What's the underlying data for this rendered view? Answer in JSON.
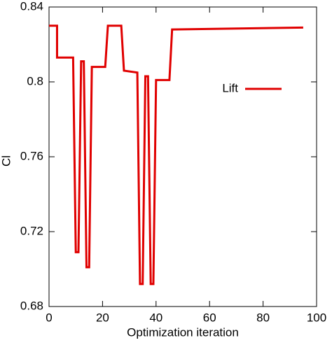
{
  "chart_data": {
    "type": "line",
    "x_label": "Optimization iteration",
    "y_label": "Cl",
    "x": [
      0,
      3,
      3,
      9,
      10,
      11,
      12,
      13,
      14,
      15,
      16,
      21,
      22,
      27,
      28,
      33,
      34,
      35,
      36,
      37,
      38,
      39,
      40,
      45,
      46,
      95
    ],
    "series": [
      {
        "name": "Lift",
        "color": "#e00000",
        "values": [
          0.83,
          0.83,
          0.813,
          0.813,
          0.709,
          0.709,
          0.811,
          0.811,
          0.701,
          0.701,
          0.808,
          0.808,
          0.83,
          0.83,
          0.806,
          0.805,
          0.692,
          0.692,
          0.803,
          0.803,
          0.692,
          0.692,
          0.801,
          0.801,
          0.828,
          0.829
        ]
      }
    ],
    "xlim": [
      0,
      100
    ],
    "xticks": [
      0,
      20,
      40,
      60,
      80,
      100
    ],
    "ylim": [
      0.68,
      0.84
    ],
    "yticks": [
      0.68,
      0.72,
      0.76,
      0.8,
      0.84
    ],
    "legend": "right"
  }
}
